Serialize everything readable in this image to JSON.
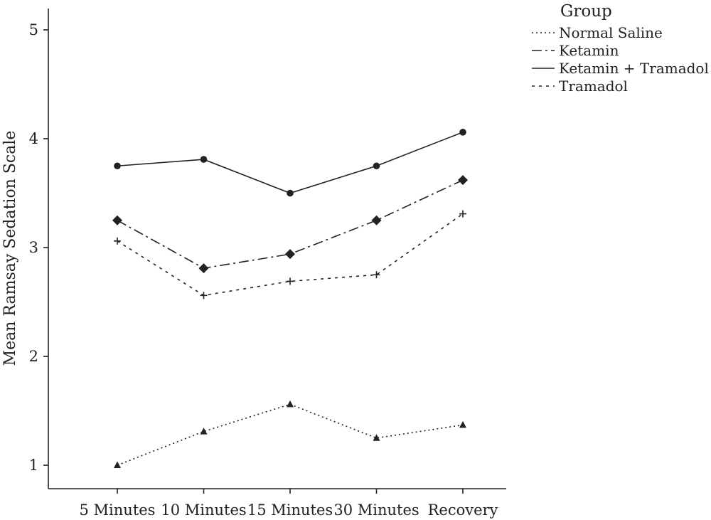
{
  "chart_data": {
    "type": "line",
    "title": "",
    "xlabel": "",
    "ylabel": "Mean Ramsay Sedation Scale",
    "categories": [
      "5 Minutes",
      "10 Minutes",
      "15 Minutes",
      "30 Minutes",
      "Recovery"
    ],
    "ylim": [
      1,
      5
    ],
    "yticks": [
      1,
      2,
      3,
      4,
      5
    ],
    "grid": false,
    "legend": {
      "title": "Group",
      "placement": "top-right"
    },
    "series": [
      {
        "name": "Normal Saline",
        "values": [
          1.0,
          1.31,
          1.56,
          1.25,
          1.37
        ],
        "dash": "2,4",
        "marker": "triangle"
      },
      {
        "name": "Ketamin",
        "values": [
          3.25,
          2.81,
          2.94,
          3.25,
          3.62
        ],
        "dash": "14,5,3,5",
        "marker": "diamond"
      },
      {
        "name": "Ketamin + Tramadol",
        "values": [
          3.75,
          3.81,
          3.5,
          3.75,
          4.06
        ],
        "dash": "",
        "marker": "circle"
      },
      {
        "name": "Tramadol",
        "values": [
          3.06,
          2.56,
          2.69,
          2.75,
          3.31
        ],
        "dash": "4,6",
        "marker": "plus"
      }
    ],
    "colors": {
      "ink": "#222222",
      "background": "#ffffff"
    }
  }
}
